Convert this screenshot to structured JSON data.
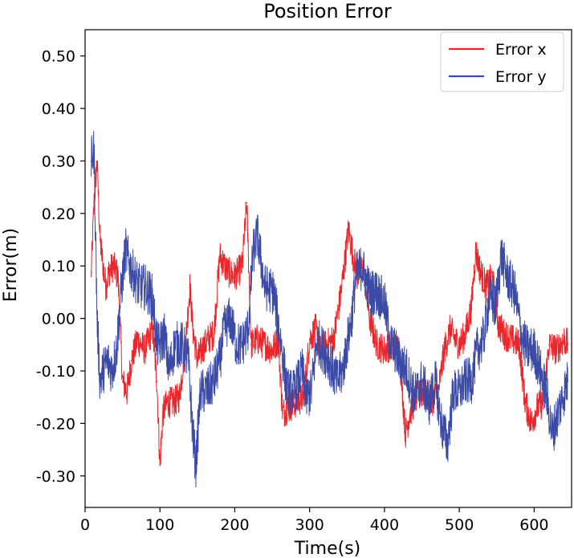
{
  "chart_data": {
    "type": "line",
    "title": "Position Error",
    "xlabel": "Time(s)",
    "ylabel": "Error(m)",
    "xlim": [
      0,
      650
    ],
    "ylim": [
      -0.36,
      0.55
    ],
    "x_ticks": [
      0,
      100,
      200,
      300,
      400,
      500,
      600
    ],
    "x_tick_labels": [
      "0",
      "100",
      "200",
      "300",
      "400",
      "500",
      "600"
    ],
    "y_ticks": [
      0.5,
      0.4,
      0.3,
      0.2,
      0.1,
      0.0,
      -0.1,
      -0.2,
      -0.3
    ],
    "y_tick_labels": [
      "0.50",
      "0.40",
      "0.30",
      "0.20",
      "0.10",
      "0.00",
      "-0.10",
      "-0.20",
      "-0.30"
    ],
    "legend_position": "top-right",
    "grid": false,
    "series": [
      {
        "name": "Error x",
        "color": "#e8262b",
        "x": [
          8,
          12,
          16,
          20,
          24,
          28,
          32,
          38,
          44,
          50,
          56,
          62,
          70,
          80,
          90,
          96,
          100,
          104,
          110,
          118,
          126,
          134,
          140,
          144,
          150,
          156,
          164,
          172,
          180,
          190,
          200,
          210,
          216,
          222,
          230,
          240,
          250,
          258,
          264,
          272,
          282,
          292,
          300,
          308,
          314,
          322,
          332,
          342,
          352,
          358,
          364,
          372,
          380,
          390,
          400,
          410,
          420,
          428,
          434,
          442,
          452,
          462,
          472,
          480,
          488,
          494,
          500,
          508,
          516,
          522,
          528,
          536,
          544,
          552,
          560,
          570,
          580,
          588,
          596,
          604,
          612,
          620,
          630,
          640,
          645
        ],
        "y": [
          0.08,
          0.22,
          0.3,
          0.15,
          0.1,
          0.06,
          0.09,
          0.1,
          0.08,
          -0.12,
          -0.14,
          -0.08,
          -0.04,
          -0.06,
          -0.02,
          -0.12,
          -0.28,
          -0.18,
          -0.16,
          -0.16,
          -0.15,
          -0.05,
          0.06,
          -0.02,
          -0.08,
          -0.06,
          -0.04,
          -0.03,
          0.12,
          0.09,
          0.08,
          0.1,
          0.22,
          -0.05,
          -0.04,
          -0.05,
          -0.06,
          -0.04,
          -0.18,
          -0.17,
          -0.16,
          -0.15,
          -0.04,
          -0.02,
          -0.06,
          -0.05,
          -0.04,
          0.05,
          0.17,
          0.12,
          0.08,
          0.1,
          0.0,
          -0.05,
          -0.06,
          -0.05,
          -0.06,
          -0.22,
          -0.18,
          -0.15,
          -0.14,
          -0.16,
          -0.14,
          -0.06,
          -0.02,
          -0.04,
          -0.05,
          -0.03,
          0.02,
          0.13,
          0.09,
          0.06,
          0.08,
          -0.01,
          -0.03,
          -0.04,
          -0.05,
          -0.16,
          -0.2,
          -0.17,
          -0.16,
          -0.05,
          -0.06,
          -0.04,
          -0.05
        ]
      },
      {
        "name": "Error y",
        "color": "#3a4aa6",
        "x": [
          8,
          12,
          16,
          20,
          24,
          30,
          36,
          42,
          48,
          54,
          60,
          66,
          72,
          80,
          90,
          96,
          100,
          106,
          112,
          120,
          130,
          138,
          144,
          148,
          154,
          162,
          172,
          180,
          186,
          194,
          202,
          210,
          218,
          224,
          230,
          240,
          252,
          262,
          270,
          280,
          290,
          296,
          302,
          310,
          318,
          326,
          336,
          344,
          350,
          356,
          362,
          370,
          380,
          390,
          400,
          408,
          414,
          420,
          430,
          440,
          450,
          460,
          468,
          476,
          484,
          492,
          500,
          508,
          516,
          524,
          532,
          540,
          548,
          556,
          564,
          574,
          584,
          592,
          600,
          608,
          616,
          624,
          632,
          640,
          645
        ],
        "y": [
          0.3,
          0.32,
          0.0,
          -0.12,
          -0.1,
          -0.08,
          -0.1,
          -0.06,
          0.05,
          0.13,
          0.1,
          0.08,
          0.06,
          0.06,
          0.04,
          -0.05,
          -0.05,
          -0.03,
          -0.1,
          -0.05,
          -0.05,
          -0.08,
          -0.22,
          -0.28,
          -0.14,
          -0.14,
          -0.12,
          -0.08,
          -0.02,
          0.0,
          -0.05,
          -0.05,
          -0.02,
          0.12,
          0.16,
          0.06,
          0.05,
          -0.05,
          -0.14,
          -0.14,
          -0.1,
          -0.15,
          -0.14,
          -0.04,
          -0.06,
          -0.08,
          -0.12,
          -0.1,
          -0.05,
          0.0,
          0.08,
          0.1,
          0.05,
          0.05,
          0.03,
          -0.05,
          -0.06,
          -0.08,
          -0.1,
          -0.15,
          -0.12,
          -0.16,
          -0.12,
          -0.2,
          -0.24,
          -0.14,
          -0.14,
          -0.12,
          -0.12,
          -0.06,
          -0.04,
          0.04,
          0.02,
          0.12,
          0.08,
          0.05,
          -0.04,
          -0.06,
          -0.06,
          -0.1,
          -0.14,
          -0.22,
          -0.18,
          -0.14,
          -0.12
        ]
      }
    ]
  }
}
